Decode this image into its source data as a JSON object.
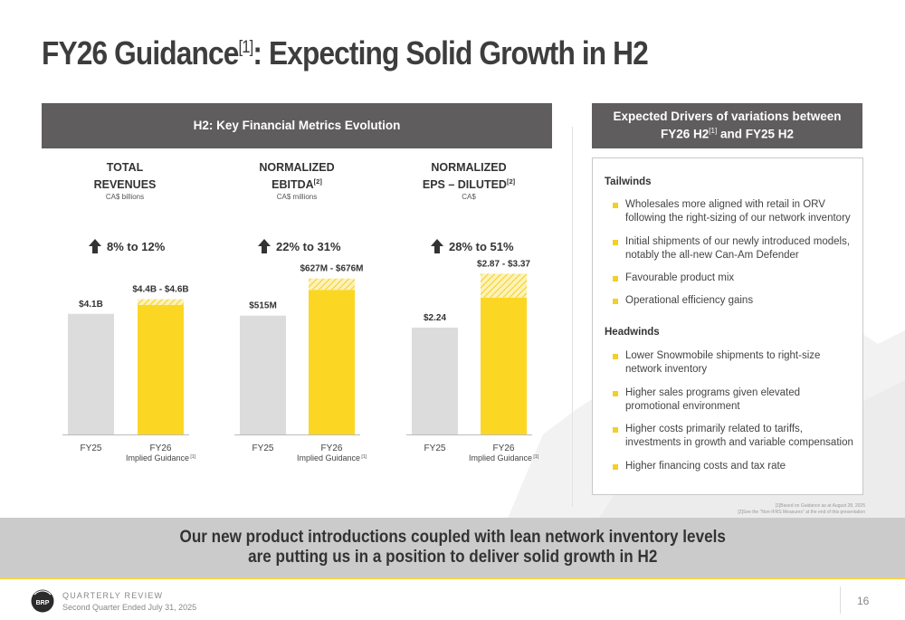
{
  "title": {
    "main": "FY26 Guidance",
    "sup": "[1]",
    "rest": ": Expecting Solid Growth in H2"
  },
  "left_header": "H2: Key Financial Metrics Evolution",
  "right_header": {
    "line1": "Expected Drivers of variations between",
    "line2_a": "FY26 H2",
    "line2_sup": "[1]",
    "line2_b": " and FY25 H2"
  },
  "metrics": [
    {
      "line1": "TOTAL",
      "line2": "REVENUES",
      "sup": "",
      "unit": "CA$ billions",
      "growth": "8% to 12%"
    },
    {
      "line1": "NORMALIZED",
      "line2": "EBITDA",
      "sup": "[2]",
      "unit": "CA$ millions",
      "growth": "22% to 31%"
    },
    {
      "line1": "NORMALIZED",
      "line2": "EPS – DILUTED",
      "sup": "[2]",
      "unit": "CA$",
      "growth": "28% to 51%"
    }
  ],
  "chart_data": [
    {
      "type": "bar",
      "categories": [
        "FY25",
        "FY26 Implied Guidance"
      ],
      "fy25": 4.1,
      "fy26_low": 4.4,
      "fy26_high": 4.6,
      "labels": [
        "$4.1B",
        "$4.4B - $4.6B"
      ],
      "ylim": [
        0,
        6.0
      ]
    },
    {
      "type": "bar",
      "categories": [
        "FY25",
        "FY26 Implied Guidance"
      ],
      "fy25": 515,
      "fy26_low": 627,
      "fy26_high": 676,
      "labels": [
        "$515M",
        "$627M - $676M"
      ],
      "ylim": [
        0,
        765
      ]
    },
    {
      "type": "bar",
      "categories": [
        "FY25",
        "FY26 Implied Guidance"
      ],
      "fy25": 2.24,
      "fy26_low": 2.87,
      "fy26_high": 3.37,
      "labels": [
        "$2.24",
        "$2.87 - $3.37"
      ],
      "ylim": [
        0,
        3.7
      ]
    }
  ],
  "axis_labels": {
    "fy25": "FY25",
    "fy26": "FY26",
    "implied": "Implied Guidance",
    "implied_sup": "[1]"
  },
  "tailwinds": {
    "heading": "Tailwinds",
    "items": [
      "Wholesales more aligned with retail in ORV following the right-sizing of our network inventory",
      "Initial shipments of our newly introduced models, notably the all-new Can-Am Defender",
      "Favourable product mix",
      "Operational efficiency gains"
    ]
  },
  "headwinds": {
    "heading": "Headwinds",
    "items": [
      "Lower Snowmobile shipments to right-size network inventory",
      "Higher sales programs given elevated promotional environment",
      "Higher costs primarily related to tariffs, investments in growth and variable compensation",
      "Higher financing costs and tax rate"
    ]
  },
  "footnotes": [
    "[1]Based on Guidance as at August 28, 2025",
    "[2]See the \"Non-IFRS Measures\" at the end of this presentation"
  ],
  "banner": {
    "line1": "Our new product introductions coupled with lean network inventory levels",
    "line2": "are putting us in a position to deliver solid growth in H2"
  },
  "footer": {
    "review": "QUARTERLY REVIEW",
    "period": "Second Quarter Ended July 31, 2025",
    "logo_text": "BRP",
    "page": "16"
  },
  "colors": {
    "header_bg": "#5f5d5d",
    "fy25_bar": "#dcdcdc",
    "fy26_bar": "#fbd724",
    "bullet": "#f4cf24",
    "banner_bg": "#cbcbcb"
  }
}
